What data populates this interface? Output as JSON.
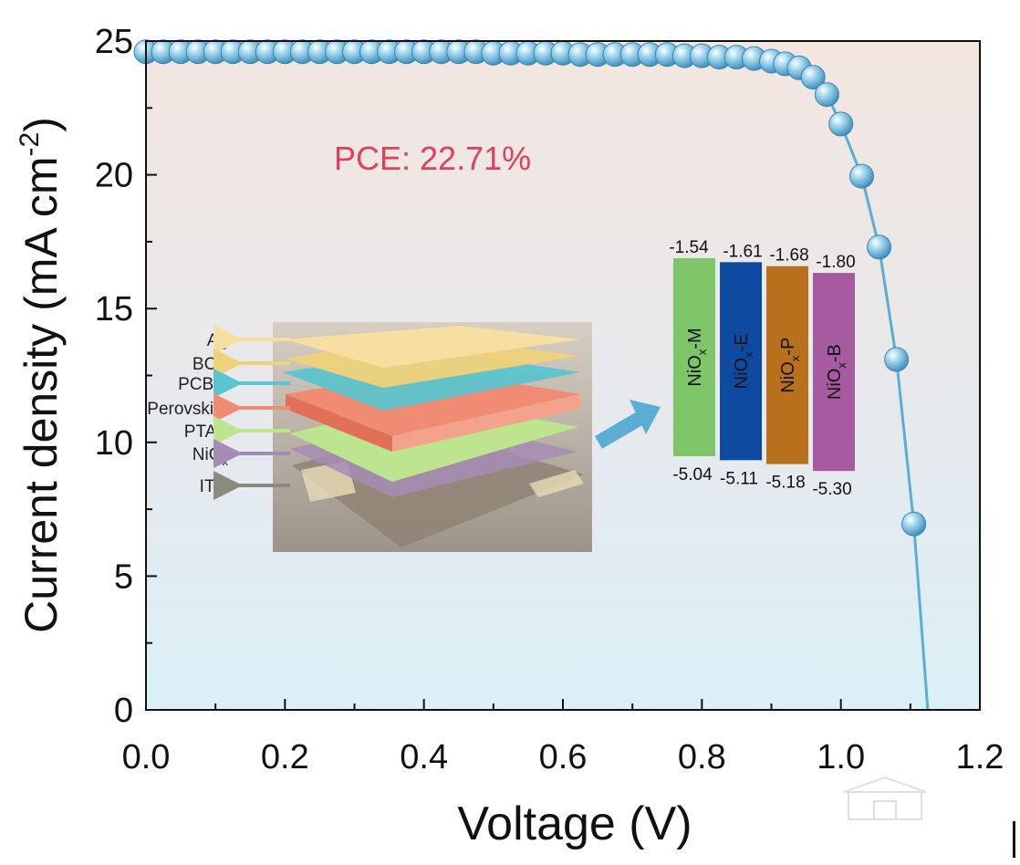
{
  "chart_data": {
    "type": "scatter",
    "title": "",
    "xlabel": "Voltage (V)",
    "ylabel": "Current density (mA cm",
    "ylabel_superscript": "-2",
    "ylabel_close": ")",
    "xlim": [
      0.0,
      1.2
    ],
    "ylim": [
      0,
      25
    ],
    "x_ticks": [
      "0.0",
      "0.2",
      "0.4",
      "0.6",
      "0.8",
      "1.0",
      "1.2"
    ],
    "y_ticks": [
      "0",
      "5",
      "10",
      "15",
      "20",
      "25"
    ],
    "grid": false,
    "colors": {
      "series": "#5aaed4",
      "annotation": "#e0405a"
    },
    "annotation": "PCE: 22.71%",
    "series": [
      {
        "x": [
          0.0,
          0.025,
          0.05,
          0.075,
          0.1,
          0.125,
          0.15,
          0.175,
          0.2,
          0.225,
          0.25,
          0.275,
          0.3,
          0.325,
          0.35,
          0.375,
          0.4,
          0.425,
          0.45,
          0.475,
          0.5,
          0.525,
          0.55,
          0.575,
          0.6,
          0.625,
          0.65,
          0.675,
          0.7,
          0.725,
          0.75,
          0.775,
          0.8,
          0.825,
          0.85,
          0.875,
          0.9,
          0.92,
          0.94,
          0.96,
          0.98,
          1.0,
          1.03,
          1.055,
          1.08,
          1.105
        ],
        "y": [
          24.6,
          24.6,
          24.6,
          24.6,
          24.6,
          24.6,
          24.6,
          24.6,
          24.6,
          24.6,
          24.6,
          24.6,
          24.6,
          24.6,
          24.6,
          24.6,
          24.6,
          24.6,
          24.6,
          24.6,
          24.55,
          24.55,
          24.55,
          24.55,
          24.55,
          24.5,
          24.5,
          24.5,
          24.5,
          24.5,
          24.5,
          24.45,
          24.45,
          24.4,
          24.4,
          24.35,
          24.25,
          24.15,
          24.0,
          23.65,
          23.0,
          21.9,
          19.95,
          17.3,
          13.1,
          6.95
        ],
        "fit_x": [
          0.0,
          0.2,
          0.4,
          0.6,
          0.7,
          0.8,
          0.85,
          0.9,
          0.93,
          0.96,
          0.98,
          1.0,
          1.03,
          1.055,
          1.08,
          1.105,
          1.125
        ],
        "fit_y": [
          24.6,
          24.6,
          24.6,
          24.55,
          24.5,
          24.45,
          24.4,
          24.25,
          24.05,
          23.65,
          23.0,
          21.9,
          19.95,
          17.3,
          13.1,
          6.95,
          0
        ]
      }
    ]
  },
  "inset_device": {
    "layers": [
      {
        "label": "Ag",
        "color": "#f6dfa0"
      },
      {
        "label": "BCP",
        "color": "#efd27a"
      },
      {
        "label": "PCBM",
        "color": "#5cc4cc"
      },
      {
        "label": "Perovskite",
        "color": "#f08c74"
      },
      {
        "label": "PTAA",
        "color": "#bde48e"
      },
      {
        "label": "NiO",
        "label_sub": "x",
        "color": "#a68cb4"
      },
      {
        "label": "ITO",
        "color": "#8a8a80"
      }
    ]
  },
  "inset_energy": {
    "bars": [
      {
        "name": "NiO",
        "name_sub": "x",
        "name_suffix": "-M",
        "top": "-1.54",
        "bottom": "-5.04",
        "top_value": -1.54,
        "bottom_value": -5.04,
        "color": "#7ec56a"
      },
      {
        "name": "NiO",
        "name_sub": "x",
        "name_suffix": "-E",
        "top": "-1.61",
        "bottom": "-5.11",
        "top_value": -1.61,
        "bottom_value": -5.11,
        "color": "#0d4aa0"
      },
      {
        "name": "NiO",
        "name_sub": "x",
        "name_suffix": "-P",
        "top": "-1.68",
        "bottom": "-5.18",
        "top_value": -1.68,
        "bottom_value": -5.18,
        "color": "#b7701c"
      },
      {
        "name": "NiO",
        "name_sub": "x",
        "name_suffix": "-B",
        "top": "-1.80",
        "bottom": "-5.30",
        "top_value": -1.8,
        "bottom_value": -5.3,
        "color": "#a65aa0"
      }
    ]
  }
}
